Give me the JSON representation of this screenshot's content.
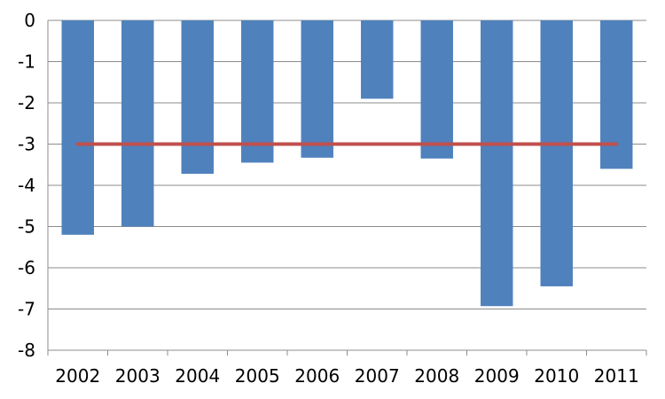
{
  "chart_data": {
    "type": "bar",
    "categories": [
      "2002",
      "2003",
      "2004",
      "2005",
      "2006",
      "2007",
      "2008",
      "2009",
      "2010",
      "2011"
    ],
    "series": [
      {
        "type": "bar",
        "values": [
          -5.2,
          -5.0,
          -3.72,
          -3.45,
          -3.33,
          -1.9,
          -3.35,
          -6.93,
          -6.45,
          -3.6
        ]
      },
      {
        "type": "line",
        "values": [
          -3,
          -3,
          -3,
          -3,
          -3,
          -3,
          -3,
          -3,
          -3,
          -3
        ]
      }
    ],
    "y_ticks": [
      "0",
      "-1",
      "-2",
      "-3",
      "-4",
      "-5",
      "-6",
      "-7",
      "-8"
    ],
    "ylim": [
      -8,
      0
    ],
    "grid": true,
    "legend": "none",
    "colors": {
      "bar": "#4f81bd",
      "line": "#c0504d",
      "grid": "#8c8c8c"
    }
  }
}
